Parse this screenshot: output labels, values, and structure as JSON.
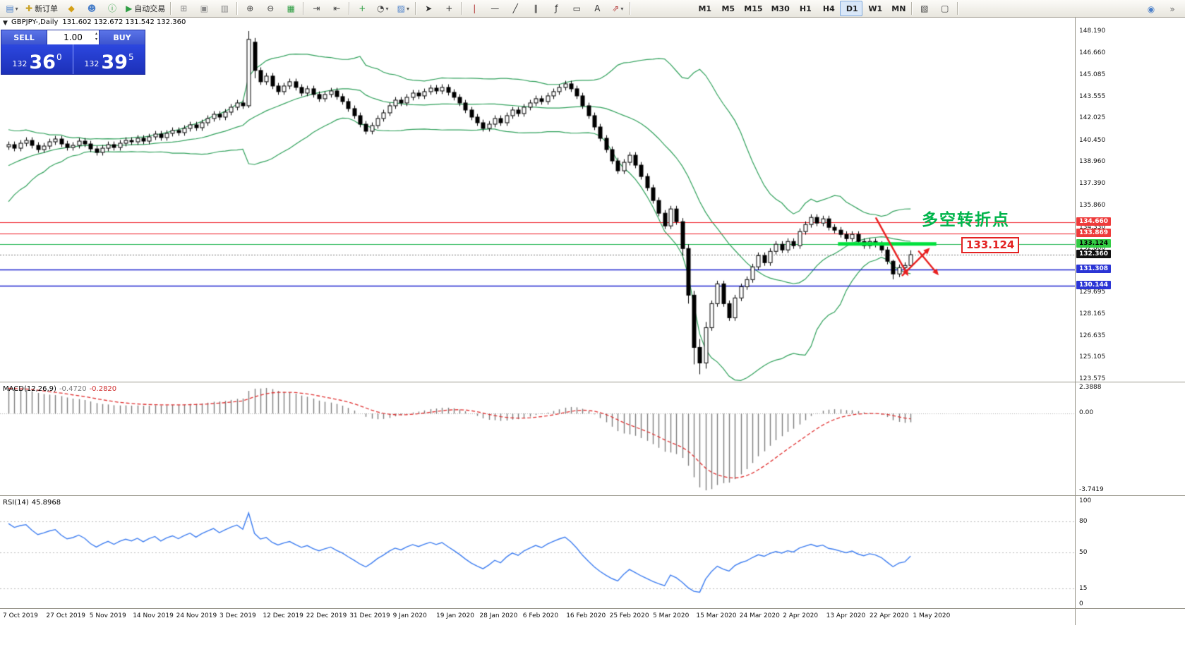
{
  "colors": {
    "bull": "#ffffff",
    "bear": "#000000",
    "outline": "#000000",
    "bands": "#2fa05a",
    "macd_hist": "#7d7d7d",
    "macd_signal": "#e03030",
    "rsi_line": "#3d7df0",
    "level_red": "#ee1c25",
    "level_blue": "#1c24cf",
    "level_green": "#19b24b",
    "green_segment": "#00e13c",
    "arrow_red": "#e81f1f",
    "annotation_green": "#00b44b",
    "callout_red": "#e32222"
  },
  "toolbar": {
    "groups": [
      {
        "name": "standard",
        "buttons": [
          {
            "name": "new-chart",
            "glyph": "▤",
            "color": "#4a7fc9",
            "caret": true
          },
          {
            "name": "new-order",
            "glyph": "✚",
            "label": "新订单",
            "color": "#c9a227"
          },
          {
            "name": "market-watch",
            "glyph": "◆",
            "color": "#d4a017"
          },
          {
            "name": "profiles",
            "glyph": "☻",
            "color": "#4a7fc9"
          },
          {
            "name": "help",
            "glyph": "ⓘ",
            "color": "#2f9e44"
          },
          {
            "name": "autotrading",
            "glyph": "▶",
            "label": "自动交易",
            "color": "#2f9e44"
          }
        ]
      },
      {
        "name": "windows",
        "buttons": [
          {
            "name": "tile-windows",
            "glyph": "⊞",
            "color": "#8a8a8a"
          },
          {
            "name": "cascade-windows",
            "glyph": "▣",
            "color": "#8a8a8a"
          },
          {
            "name": "arrange-windows",
            "glyph": "▥",
            "color": "#8a8a8a"
          }
        ]
      },
      {
        "name": "zoom",
        "buttons": [
          {
            "name": "zoom-in",
            "glyph": "⊕",
            "color": "#444444"
          },
          {
            "name": "zoom-out",
            "glyph": "⊖",
            "color": "#444444"
          },
          {
            "name": "indicators",
            "glyph": "▦",
            "color": "#2f9e44"
          }
        ]
      },
      {
        "name": "scroll",
        "buttons": [
          {
            "name": "auto-scroll",
            "glyph": "⇥",
            "color": "#444444"
          },
          {
            "name": "chart-shift",
            "glyph": "⇤",
            "color": "#444444"
          }
        ]
      },
      {
        "name": "objects-quick",
        "buttons": [
          {
            "name": "quick-order",
            "glyph": "+",
            "color": "#2f9e44"
          },
          {
            "name": "periods",
            "glyph": "◔",
            "color": "#444444",
            "caret": true
          },
          {
            "name": "templates",
            "glyph": "▨",
            "color": "#4a7fc9",
            "caret": true
          }
        ]
      },
      {
        "name": "cursor-tools",
        "buttons": [
          {
            "name": "cursor",
            "glyph": "➤",
            "color": "#333333"
          },
          {
            "name": "crosshair",
            "glyph": "+",
            "color": "#333333"
          }
        ]
      },
      {
        "name": "draw-tools",
        "buttons": [
          {
            "name": "vertical-line-tool",
            "glyph": "|",
            "color": "#b03030"
          },
          {
            "name": "horizontal-line-tool",
            "glyph": "—",
            "color": "#333333"
          },
          {
            "name": "trendline-tool",
            "glyph": "╱",
            "color": "#333333"
          },
          {
            "name": "channel-tool",
            "glyph": "∥",
            "color": "#333333"
          },
          {
            "name": "fibonacci-tool",
            "glyph": "ƒ",
            "color": "#333333"
          },
          {
            "name": "shapes-tool",
            "glyph": "▭",
            "color": "#333333"
          },
          {
            "name": "text-tool",
            "glyph": "A",
            "color": "#333333"
          },
          {
            "name": "arrows-tool",
            "glyph": "⇗",
            "color": "#b03030",
            "caret": true
          }
        ]
      },
      {
        "name": "timeframes",
        "buttons": [
          {
            "name": "timeframe-m1",
            "label": "M1"
          },
          {
            "name": "timeframe-m5",
            "label": "M5"
          },
          {
            "name": "timeframe-m15",
            "label": "M15"
          },
          {
            "name": "timeframe-m30",
            "label": "M30"
          },
          {
            "name": "timeframe-h1",
            "label": "H1"
          },
          {
            "name": "timeframe-h4",
            "label": "H4"
          },
          {
            "name": "timeframe-d1",
            "label": "D1",
            "active": true
          },
          {
            "name": "timeframe-w1",
            "label": "W1"
          },
          {
            "name": "timeframe-mn",
            "label": "MN"
          }
        ]
      },
      {
        "name": "extra",
        "buttons": [
          {
            "name": "objects-list",
            "glyph": "▧",
            "color": "#444444"
          },
          {
            "name": "full-screen",
            "glyph": "▢",
            "color": "#444444"
          }
        ]
      }
    ],
    "right_buttons": [
      {
        "name": "community",
        "glyph": "◉",
        "color": "#4a7fc9"
      },
      {
        "name": "menu-more",
        "glyph": "»",
        "color": "#666666"
      }
    ]
  },
  "chart_header": {
    "symbol": "GBPJPY-,Daily",
    "ohlc": "131.602 132.672 131.542 132.360"
  },
  "one_click": {
    "sell_label": "SELL",
    "buy_label": "BUY",
    "volume": "1.00",
    "sell_small": "132",
    "sell_big": "36",
    "sell_sup": "0",
    "buy_small": "132",
    "buy_big": "39",
    "buy_sup": "5"
  },
  "main_chart": {
    "price_axis_labels": [
      "148.190",
      "146.660",
      "145.085",
      "143.555",
      "142.025",
      "140.450",
      "138.960",
      "137.390",
      "135.860",
      "134.330",
      "132.800",
      "131.270",
      "129.695",
      "128.165",
      "126.635",
      "125.105",
      "123.575"
    ],
    "levels": [
      {
        "label": "134.660",
        "value": 134.66,
        "type": "hline",
        "color_key": "red"
      },
      {
        "label": "133.869",
        "value": 133.869,
        "type": "hline",
        "color_key": "red"
      },
      {
        "label": "133.124",
        "value": 133.124,
        "type": "hline",
        "color_key": "green"
      },
      {
        "label": "132.360",
        "value": 132.36,
        "type": "current",
        "color_key": "black"
      },
      {
        "label": "131.308",
        "value": 131.308,
        "type": "hline",
        "color_key": "blue"
      },
      {
        "label": "130.144",
        "value": 130.144,
        "type": "hline",
        "color_key": "blue"
      }
    ],
    "green_segment": {
      "price": 133.124,
      "bar1": 141.6,
      "bar2": 158.4
    },
    "arrows": [
      {
        "bar1": 148.1,
        "p1": 134.95,
        "bar2": 153.6,
        "p2": 130.85
      },
      {
        "bar1": 152.6,
        "p1": 130.9,
        "bar2": 157.3,
        "p2": 132.85
      },
      {
        "bar1": 155.4,
        "p1": 132.6,
        "bar2": 158.8,
        "p2": 130.9
      }
    ],
    "annotation_text": "多空转折点",
    "price_callout": "133.124"
  },
  "macd_panel": {
    "name": "MACD(12,26,9)",
    "main_value": "-0.4720",
    "signal_value": "-0.2820",
    "scale": [
      "2.3888",
      "0.00",
      "-3.7419"
    ]
  },
  "rsi_panel": {
    "name": "RSI(14)",
    "value": "45.8968",
    "scale": [
      "100",
      "80",
      "50",
      "15",
      "0"
    ],
    "levels": [
      80,
      50,
      15
    ]
  },
  "time_axis": {
    "dates": [
      "7 Oct 2019",
      "27 Oct 2019",
      "5 Nov 2019",
      "14 Nov 2019",
      "24 Nov 2019",
      "3 Dec 2019",
      "12 Dec 2019",
      "22 Dec 2019",
      "31 Dec 2019",
      "9 Jan 2020",
      "19 Jan 2020",
      "28 Jan 2020",
      "6 Feb 2020",
      "16 Feb 2020",
      "25 Feb 2020",
      "5 Mar 2020",
      "15 Mar 2020",
      "24 Mar 2020",
      "2 Apr 2020",
      "13 Apr 2020",
      "22 Apr 2020",
      "1 May 2020"
    ]
  },
  "chart_data": {
    "type": "candlestick",
    "symbol": "GBPJPY",
    "timeframe": "Daily",
    "title": "GBPJPY-,Daily",
    "ylim": [
      123.575,
      148.19
    ],
    "indicators": [
      {
        "name": "Bollinger Bands",
        "period": 20,
        "deviation": 2
      },
      {
        "name": "MACD",
        "fast": 12,
        "slow": 26,
        "signal": 9,
        "current_main": -0.472,
        "current_signal": -0.282
      },
      {
        "name": "RSI",
        "period": 14,
        "current": 45.8968
      }
    ],
    "preroll_closes": [
      134.0,
      134.5,
      135.1,
      134.8,
      135.6,
      136.2,
      135.9,
      136.6,
      137.2,
      136.9,
      137.5,
      138.1,
      137.8,
      138.4,
      138.9,
      138.6,
      139.1,
      139.5,
      139.2,
      139.6,
      139.9,
      139.7,
      140.0,
      140.2,
      140.0
    ],
    "visible_closes": [
      140.15,
      139.9,
      140.25,
      140.45,
      140.1,
      139.8,
      140.05,
      140.35,
      140.55,
      140.2,
      139.95,
      140.1,
      140.4,
      140.2,
      139.85,
      139.6,
      139.9,
      140.15,
      139.95,
      140.25,
      140.45,
      140.35,
      140.6,
      140.4,
      140.7,
      140.9,
      140.65,
      140.95,
      141.15,
      141.0,
      141.3,
      141.55,
      141.35,
      141.7,
      142.0,
      142.3,
      142.1,
      142.45,
      142.8,
      143.1,
      142.9,
      147.6,
      145.4,
      144.6,
      145.0,
      144.3,
      143.9,
      144.3,
      144.6,
      144.2,
      143.8,
      144.1,
      143.7,
      143.4,
      143.7,
      143.95,
      143.55,
      143.2,
      142.7,
      142.2,
      141.6,
      141.1,
      141.5,
      142.0,
      142.4,
      142.9,
      143.3,
      143.1,
      143.5,
      143.8,
      143.6,
      143.9,
      144.15,
      143.95,
      144.2,
      143.85,
      143.5,
      143.1,
      142.6,
      142.1,
      141.7,
      141.3,
      141.6,
      142.0,
      141.7,
      142.2,
      142.6,
      142.35,
      142.8,
      143.1,
      143.4,
      143.2,
      143.6,
      143.9,
      144.2,
      144.45,
      144.1,
      143.6,
      142.9,
      142.2,
      141.4,
      140.6,
      139.8,
      139.0,
      138.3,
      138.9,
      139.4,
      138.7,
      137.9,
      137.1,
      136.2,
      135.3,
      134.4,
      135.6,
      134.7,
      132.8,
      129.5,
      125.8,
      124.7,
      127.2,
      128.9,
      130.3,
      128.9,
      127.9,
      129.3,
      130.1,
      130.6,
      131.5,
      132.3,
      131.8,
      132.6,
      133.1,
      132.7,
      133.3,
      133.0,
      134.0,
      134.5,
      135.0,
      134.6,
      134.9,
      134.3,
      134.1,
      133.8,
      133.5,
      133.8,
      133.3,
      133.0,
      133.3,
      133.1,
      132.7,
      131.9,
      131.0,
      131.45,
      131.6,
      132.36
    ],
    "special_candles": {
      "41": [
        142.9,
        148.19,
        142.75,
        147.6
      ],
      "42": [
        147.4,
        147.7,
        144.85,
        145.4
      ],
      "115": [
        134.7,
        134.95,
        132.3,
        132.8
      ],
      "116": [
        132.8,
        133.1,
        128.9,
        129.5
      ],
      "117": [
        129.5,
        129.8,
        124.6,
        125.8
      ],
      "118": [
        125.8,
        126.4,
        123.9,
        124.7
      ],
      "119": [
        124.7,
        127.6,
        124.3,
        127.2
      ],
      "151": [
        131.9,
        132.0,
        130.62,
        131.0
      ],
      "154": [
        131.602,
        132.672,
        131.542,
        132.36
      ]
    }
  }
}
